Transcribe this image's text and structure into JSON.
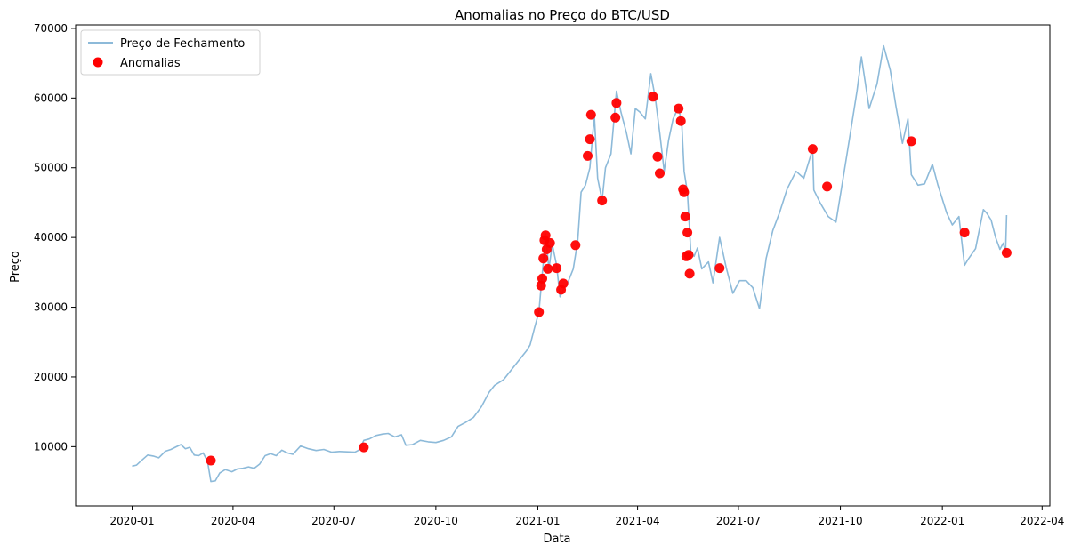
{
  "chart_data": {
    "type": "line",
    "title": "Anomalias no Preço do BTC/USD",
    "xlabel": "Data",
    "ylabel": "Preço",
    "x_range": [
      "2019-11-11",
      "2022-04-08"
    ],
    "ylim": [
      1500,
      70500
    ],
    "grid": false,
    "legend_position": "top-left",
    "x_ticks": [
      {
        "date": "2020-01-01",
        "label": "2020-01"
      },
      {
        "date": "2020-04-01",
        "label": "2020-04"
      },
      {
        "date": "2020-07-01",
        "label": "2020-07"
      },
      {
        "date": "2020-10-01",
        "label": "2020-10"
      },
      {
        "date": "2021-01-01",
        "label": "2021-01"
      },
      {
        "date": "2021-04-01",
        "label": "2021-04"
      },
      {
        "date": "2021-07-01",
        "label": "2021-07"
      },
      {
        "date": "2021-10-01",
        "label": "2021-10"
      },
      {
        "date": "2022-01-01",
        "label": "2022-01"
      },
      {
        "date": "2022-04-01",
        "label": "2022-04"
      }
    ],
    "y_ticks": [
      10000,
      20000,
      30000,
      40000,
      50000,
      60000,
      70000
    ],
    "series": [
      {
        "name": "Preço de Fechamento",
        "kind": "line",
        "color": "#8dbad9",
        "points": [
          [
            "2020-01-01",
            7200
          ],
          [
            "2020-01-05",
            7350
          ],
          [
            "2020-01-10",
            8100
          ],
          [
            "2020-01-15",
            8800
          ],
          [
            "2020-01-20",
            8650
          ],
          [
            "2020-01-25",
            8400
          ],
          [
            "2020-01-31",
            9350
          ],
          [
            "2020-02-05",
            9600
          ],
          [
            "2020-02-10",
            10000
          ],
          [
            "2020-02-14",
            10300
          ],
          [
            "2020-02-18",
            9700
          ],
          [
            "2020-02-22",
            9900
          ],
          [
            "2020-02-26",
            8800
          ],
          [
            "2020-03-01",
            8700
          ],
          [
            "2020-03-05",
            9100
          ],
          [
            "2020-03-09",
            7900
          ],
          [
            "2020-03-12",
            5000
          ],
          [
            "2020-03-16",
            5100
          ],
          [
            "2020-03-20",
            6200
          ],
          [
            "2020-03-25",
            6700
          ],
          [
            "2020-03-31",
            6400
          ],
          [
            "2020-04-05",
            6800
          ],
          [
            "2020-04-10",
            6900
          ],
          [
            "2020-04-15",
            7100
          ],
          [
            "2020-04-20",
            6900
          ],
          [
            "2020-04-25",
            7500
          ],
          [
            "2020-04-30",
            8700
          ],
          [
            "2020-05-05",
            9000
          ],
          [
            "2020-05-10",
            8700
          ],
          [
            "2020-05-15",
            9500
          ],
          [
            "2020-05-20",
            9100
          ],
          [
            "2020-05-25",
            8900
          ],
          [
            "2020-06-01",
            10100
          ],
          [
            "2020-06-08",
            9700
          ],
          [
            "2020-06-15",
            9450
          ],
          [
            "2020-06-22",
            9600
          ],
          [
            "2020-06-29",
            9200
          ],
          [
            "2020-07-06",
            9300
          ],
          [
            "2020-07-13",
            9250
          ],
          [
            "2020-07-20",
            9200
          ],
          [
            "2020-07-24",
            9550
          ],
          [
            "2020-07-28",
            10900
          ],
          [
            "2020-08-02",
            11100
          ],
          [
            "2020-08-08",
            11600
          ],
          [
            "2020-08-14",
            11800
          ],
          [
            "2020-08-19",
            11900
          ],
          [
            "2020-08-25",
            11400
          ],
          [
            "2020-08-31",
            11700
          ],
          [
            "2020-09-04",
            10200
          ],
          [
            "2020-09-10",
            10300
          ],
          [
            "2020-09-17",
            10900
          ],
          [
            "2020-09-24",
            10700
          ],
          [
            "2020-10-01",
            10600
          ],
          [
            "2020-10-08",
            10900
          ],
          [
            "2020-10-15",
            11400
          ],
          [
            "2020-10-21",
            12900
          ],
          [
            "2020-10-28",
            13500
          ],
          [
            "2020-11-04",
            14200
          ],
          [
            "2020-11-11",
            15700
          ],
          [
            "2020-11-18",
            17800
          ],
          [
            "2020-11-23",
            18800
          ],
          [
            "2020-12-01",
            19600
          ],
          [
            "2020-12-17",
            22800
          ],
          [
            "2020-12-22",
            23800
          ],
          [
            "2020-12-25",
            24600
          ],
          [
            "2020-12-29",
            27000
          ],
          [
            "2021-01-02",
            29300
          ],
          [
            "2021-01-04",
            33000
          ],
          [
            "2021-01-06",
            36500
          ],
          [
            "2021-01-08",
            40500
          ],
          [
            "2021-01-11",
            35500
          ],
          [
            "2021-01-14",
            39000
          ],
          [
            "2021-01-18",
            36000
          ],
          [
            "2021-01-21",
            31500
          ],
          [
            "2021-01-24",
            32500
          ],
          [
            "2021-01-28",
            33500
          ],
          [
            "2021-02-02",
            35500
          ],
          [
            "2021-02-06",
            39500
          ],
          [
            "2021-02-09",
            46500
          ],
          [
            "2021-02-13",
            47500
          ],
          [
            "2021-02-17",
            50000
          ],
          [
            "2021-02-21",
            57500
          ],
          [
            "2021-02-24",
            48500
          ],
          [
            "2021-02-28",
            45300
          ],
          [
            "2021-03-03",
            50000
          ],
          [
            "2021-03-08",
            52000
          ],
          [
            "2021-03-13",
            61000
          ],
          [
            "2021-03-17",
            58000
          ],
          [
            "2021-03-22",
            55000
          ],
          [
            "2021-03-26",
            52000
          ],
          [
            "2021-03-30",
            58500
          ],
          [
            "2021-04-03",
            58000
          ],
          [
            "2021-04-08",
            57000
          ],
          [
            "2021-04-13",
            63500
          ],
          [
            "2021-04-17",
            60000
          ],
          [
            "2021-04-21",
            55000
          ],
          [
            "2021-04-25",
            49500
          ],
          [
            "2021-04-29",
            54000
          ],
          [
            "2021-05-03",
            57000
          ],
          [
            "2021-05-08",
            58700
          ],
          [
            "2021-05-11",
            56000
          ],
          [
            "2021-05-13",
            49500
          ],
          [
            "2021-05-16",
            46500
          ],
          [
            "2021-05-19",
            38000
          ],
          [
            "2021-05-22",
            37300
          ],
          [
            "2021-05-25",
            38500
          ],
          [
            "2021-05-29",
            35500
          ],
          [
            "2021-06-04",
            36500
          ],
          [
            "2021-06-08",
            33500
          ],
          [
            "2021-06-14",
            40000
          ],
          [
            "2021-06-20",
            35700
          ],
          [
            "2021-06-26",
            32000
          ],
          [
            "2021-07-02",
            33800
          ],
          [
            "2021-07-08",
            33800
          ],
          [
            "2021-07-14",
            32800
          ],
          [
            "2021-07-20",
            29800
          ],
          [
            "2021-07-26",
            37000
          ],
          [
            "2021-08-01",
            41000
          ],
          [
            "2021-08-07",
            43500
          ],
          [
            "2021-08-14",
            47000
          ],
          [
            "2021-08-22",
            49500
          ],
          [
            "2021-08-29",
            48500
          ],
          [
            "2021-09-06",
            52700
          ],
          [
            "2021-09-07",
            46800
          ],
          [
            "2021-09-13",
            44900
          ],
          [
            "2021-09-20",
            43000
          ],
          [
            "2021-09-27",
            42200
          ],
          [
            "2021-10-03",
            48000
          ],
          [
            "2021-10-10",
            55000
          ],
          [
            "2021-10-16",
            61000
          ],
          [
            "2021-10-20",
            65900
          ],
          [
            "2021-10-27",
            58500
          ],
          [
            "2021-11-03",
            62000
          ],
          [
            "2021-11-09",
            67500
          ],
          [
            "2021-11-15",
            64000
          ],
          [
            "2021-11-20",
            59000
          ],
          [
            "2021-11-26",
            53500
          ],
          [
            "2021-12-01",
            57000
          ],
          [
            "2021-12-04",
            49000
          ],
          [
            "2021-12-10",
            47500
          ],
          [
            "2021-12-16",
            47700
          ],
          [
            "2021-12-23",
            50500
          ],
          [
            "2021-12-28",
            47500
          ],
          [
            "2022-01-05",
            43500
          ],
          [
            "2022-01-10",
            41800
          ],
          [
            "2022-01-16",
            43000
          ],
          [
            "2022-01-21",
            36000
          ],
          [
            "2022-01-24",
            36800
          ],
          [
            "2022-01-31",
            38400
          ],
          [
            "2022-02-07",
            44000
          ],
          [
            "2022-02-10",
            43500
          ],
          [
            "2022-02-14",
            42500
          ],
          [
            "2022-02-18",
            40000
          ],
          [
            "2022-02-22",
            38300
          ],
          [
            "2022-02-25",
            39200
          ],
          [
            "2022-02-27",
            37800
          ],
          [
            "2022-02-28",
            43200
          ]
        ]
      },
      {
        "name": "Anomalias",
        "kind": "scatter",
        "color": "#ff0000",
        "points": [
          [
            "2020-03-12",
            8000
          ],
          [
            "2020-07-28",
            9900
          ],
          [
            "2021-01-02",
            29300
          ],
          [
            "2021-01-04",
            33100
          ],
          [
            "2021-01-05",
            34100
          ],
          [
            "2021-01-06",
            37000
          ],
          [
            "2021-01-07",
            39600
          ],
          [
            "2021-01-08",
            40300
          ],
          [
            "2021-01-09",
            38300
          ],
          [
            "2021-01-10",
            35500
          ],
          [
            "2021-01-12",
            39200
          ],
          [
            "2021-01-18",
            35600
          ],
          [
            "2021-01-22",
            32500
          ],
          [
            "2021-01-24",
            33400
          ],
          [
            "2021-02-04",
            38900
          ],
          [
            "2021-02-15",
            51700
          ],
          [
            "2021-02-17",
            54100
          ],
          [
            "2021-02-18",
            57600
          ],
          [
            "2021-02-28",
            45300
          ],
          [
            "2021-03-12",
            57200
          ],
          [
            "2021-03-13",
            59300
          ],
          [
            "2021-04-15",
            60200
          ],
          [
            "2021-04-19",
            51600
          ],
          [
            "2021-04-21",
            49200
          ],
          [
            "2021-05-08",
            58500
          ],
          [
            "2021-05-10",
            56700
          ],
          [
            "2021-05-12",
            46900
          ],
          [
            "2021-05-13",
            46500
          ],
          [
            "2021-05-14",
            43000
          ],
          [
            "2021-05-15",
            37300
          ],
          [
            "2021-05-16",
            40700
          ],
          [
            "2021-05-17",
            37500
          ],
          [
            "2021-05-18",
            34800
          ],
          [
            "2021-06-14",
            35600
          ],
          [
            "2021-09-06",
            52700
          ],
          [
            "2021-09-19",
            47300
          ],
          [
            "2021-12-04",
            53800
          ],
          [
            "2022-01-21",
            40700
          ],
          [
            "2022-02-28",
            37800
          ]
        ]
      }
    ]
  }
}
